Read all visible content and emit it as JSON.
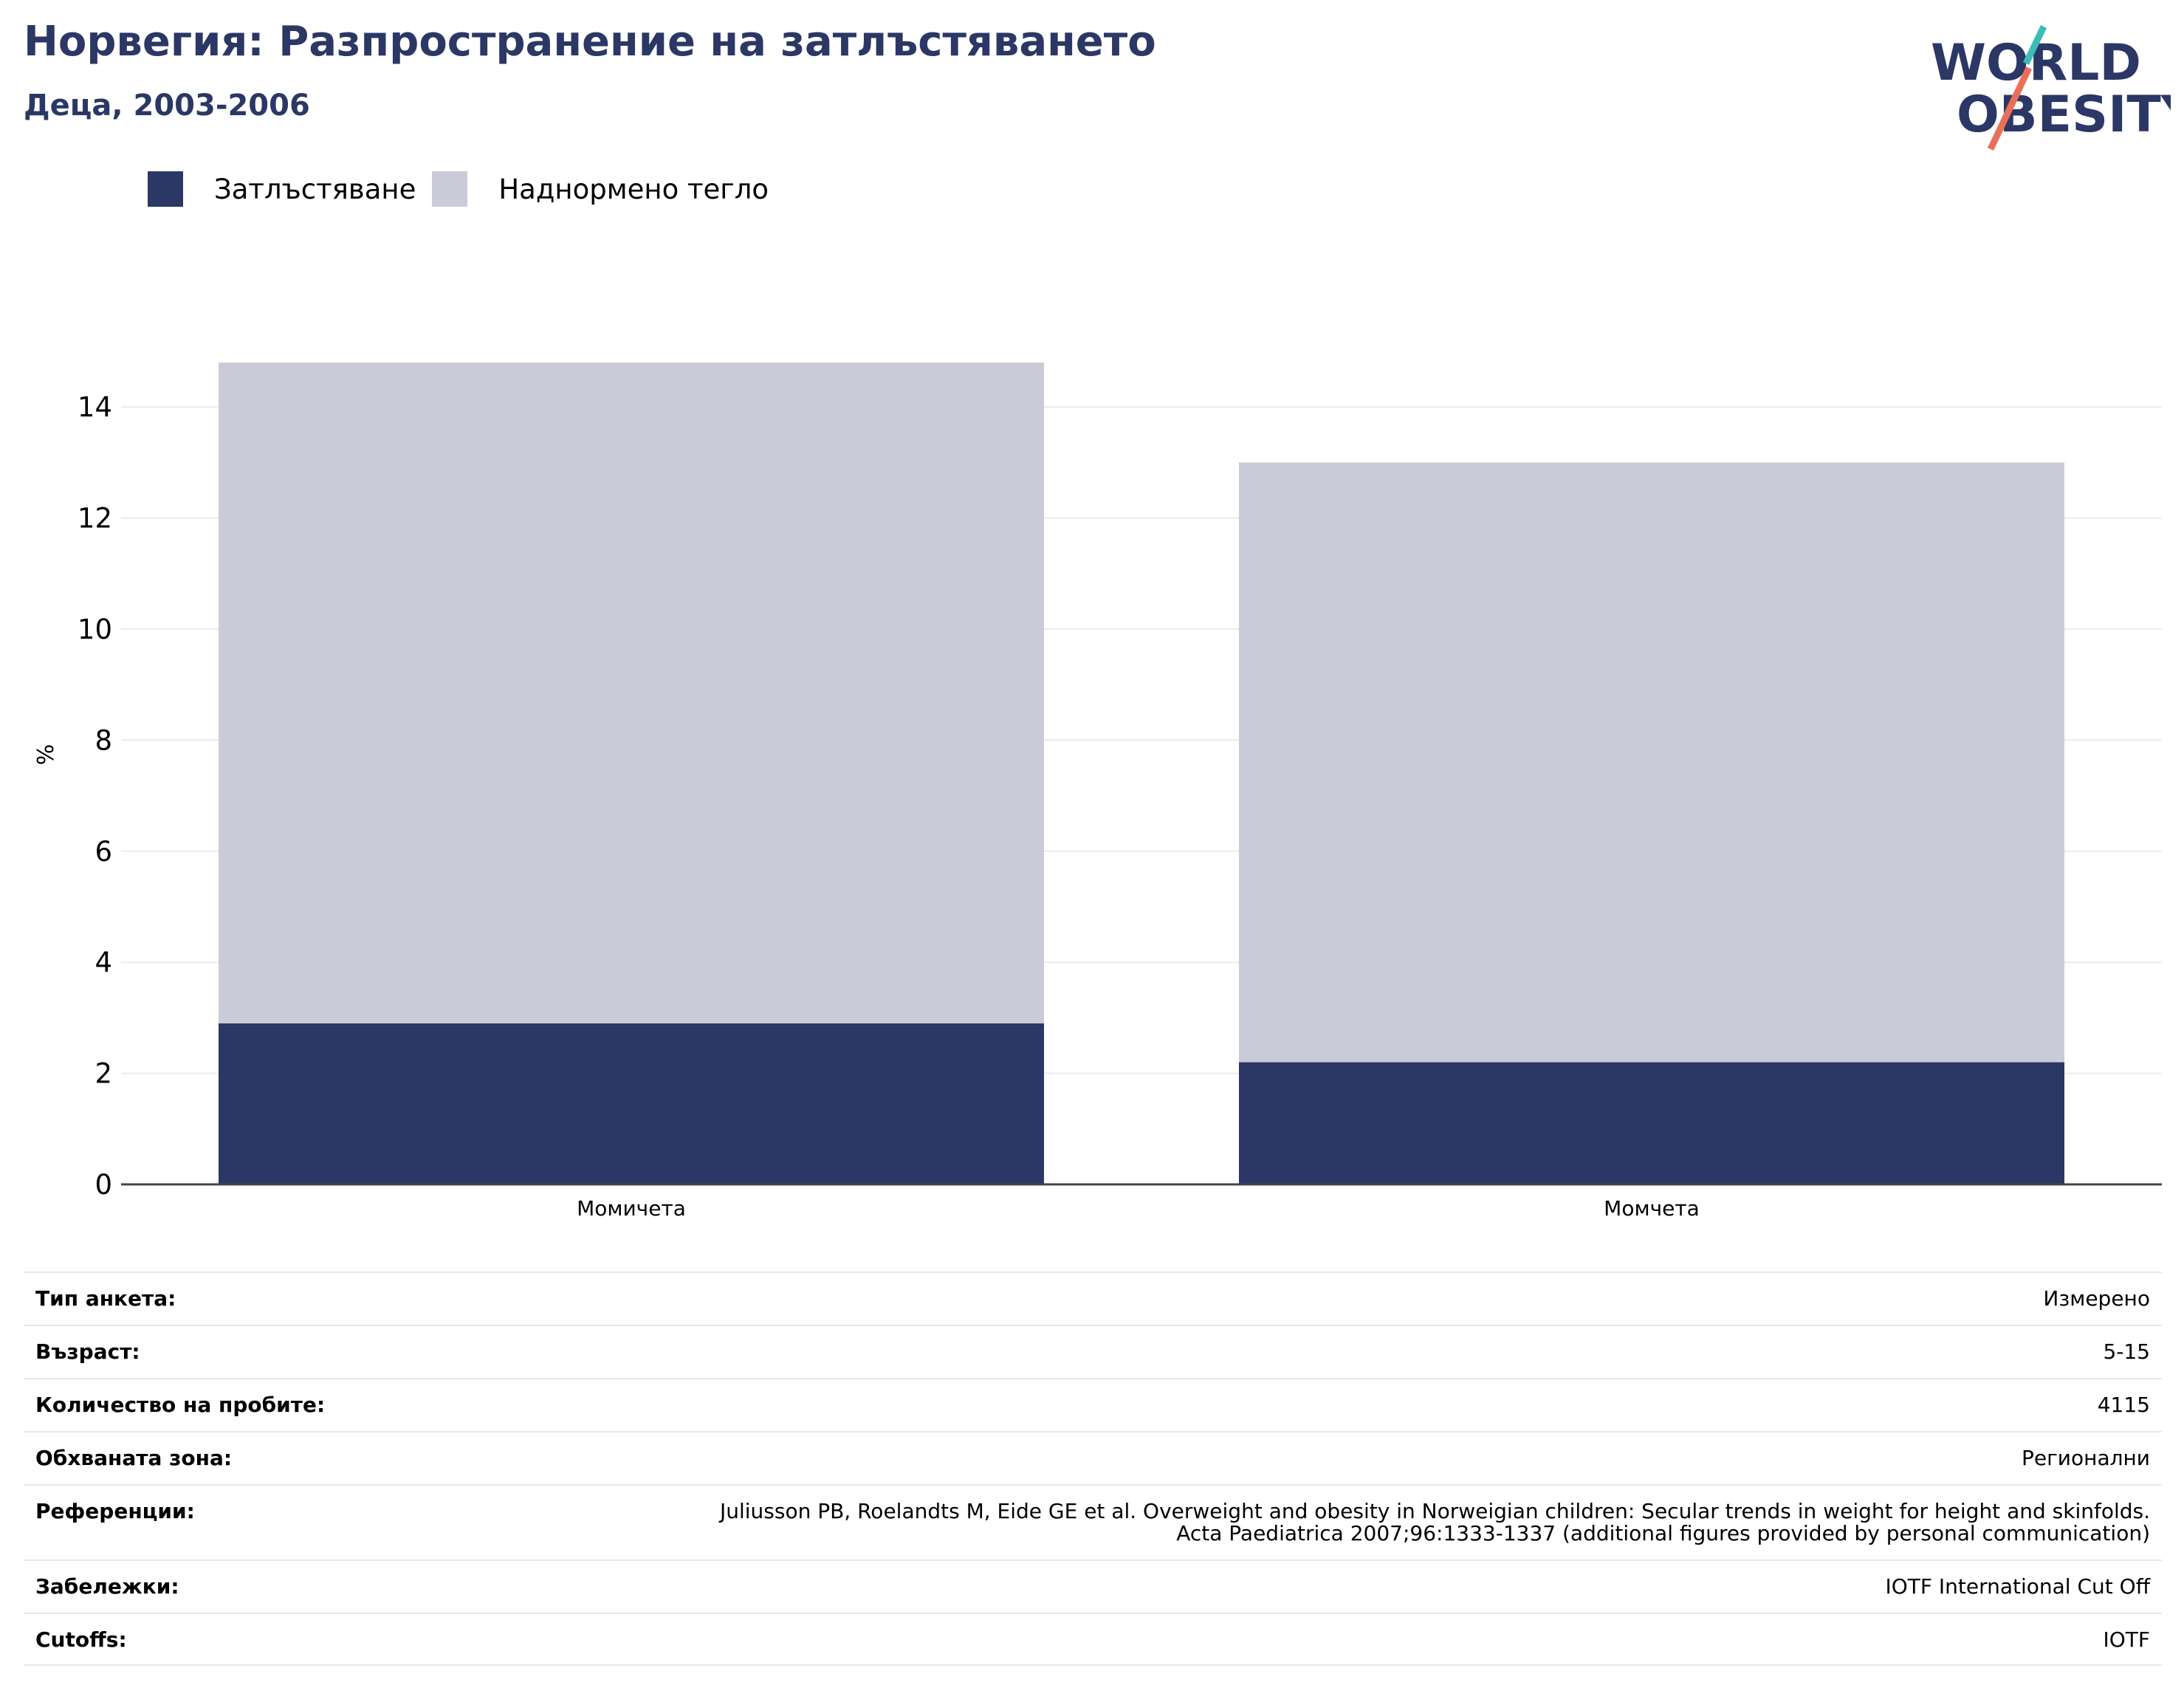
{
  "header": {
    "title": "Норвегия: Разпространение на затлъстяването",
    "subtitle": "Деца, 2003-2006"
  },
  "logo": {
    "line1": "WORLD",
    "line2": "OBESITY",
    "text_color": "#2b3765",
    "accent_teal": "#3dbcb8",
    "accent_coral": "#e8705a"
  },
  "chart_data": {
    "type": "bar",
    "stacked": true,
    "categories": [
      "Момичета",
      "Момчета"
    ],
    "series": [
      {
        "name": "Затлъстяване",
        "color": "#2b3765",
        "values": [
          2.9,
          2.2
        ]
      },
      {
        "name": "Наднормено тегло",
        "color": "#c9ccd8",
        "values": [
          11.9,
          10.8
        ]
      }
    ],
    "ylabel": "%",
    "xlabel": "",
    "ylim": [
      0,
      15
    ],
    "yticks": [
      0,
      2,
      4,
      6,
      8,
      10,
      12,
      14
    ],
    "grid": true,
    "legend_position": "top-left"
  },
  "info_table": [
    {
      "label": "Тип анкета:",
      "value": "Измерено"
    },
    {
      "label": "Възраст:",
      "value": "5-15"
    },
    {
      "label": "Количество на пробите:",
      "value": "4115"
    },
    {
      "label": "Обхваната зона:",
      "value": "Регионални"
    },
    {
      "label": "Референции:",
      "value": "Juliusson PB, Roelandts M, Eide GE et al. Overweight and obesity in Norweigian children: Secular trends in weight for height and skinfolds.\nActa Paediatrica 2007;96:1333-1337 (additional figures provided by personal communication)"
    },
    {
      "label": "Забележки:",
      "value": "IOTF International Cut Off"
    },
    {
      "label": "Cutoffs:",
      "value": "IOTF"
    }
  ]
}
